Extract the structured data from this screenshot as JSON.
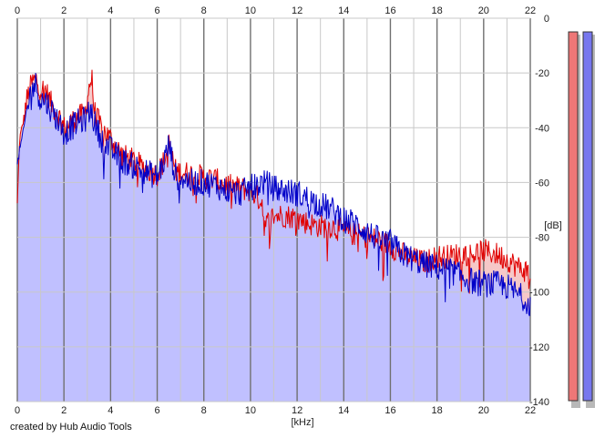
{
  "footer": {
    "credit": "created by Hub Audio Tools"
  },
  "colors": {
    "background": "#ffffff",
    "grid_minor": "#c8c8c8",
    "grid_major": "#707070",
    "red_line": "#e00000",
    "red_fill": "#f6c8c8",
    "blue_line": "#0000c8",
    "blue_fill": "#c0c0ff",
    "meter_red": "#ee7777",
    "meter_blue": "#7777ee",
    "meter_shadow": "#b8b8b8"
  },
  "chart_data": {
    "type": "area",
    "xlabel": "[kHz]",
    "ylabel": "[dB]",
    "xlim": [
      0,
      22
    ],
    "ylim": [
      -140,
      0
    ],
    "x_ticks": [
      "0",
      "2",
      "4",
      "6",
      "8",
      "10",
      "12",
      "14",
      "16",
      "18",
      "20",
      "22"
    ],
    "x_tick_values": [
      0,
      2,
      4,
      6,
      8,
      10,
      12,
      14,
      16,
      18,
      20,
      22
    ],
    "y_ticks": [
      "0",
      "-20",
      "-40",
      "-60",
      "-80",
      "-100",
      "-120",
      "-140"
    ],
    "y_tick_values": [
      0,
      -20,
      -40,
      -60,
      -80,
      -100,
      -120,
      -140
    ],
    "x_top_axis": true,
    "y_axis_side": "right",
    "grid": true,
    "series": [
      {
        "color": "red",
        "x": [
          0,
          0.1,
          0.25,
          0.4,
          0.6,
          0.8,
          1.0,
          1.2,
          1.5,
          1.8,
          2.0,
          2.3,
          2.6,
          2.9,
          3.1,
          3.2,
          3.3,
          3.6,
          4.0,
          4.5,
          5.0,
          5.5,
          6.0,
          6.3,
          6.5,
          6.8,
          7.0,
          7.5,
          8.0,
          8.5,
          9.0,
          9.5,
          10.0,
          10.5,
          10.6,
          11.0,
          11.5,
          12.0,
          12.5,
          13.0,
          13.5,
          14.0,
          14.5,
          15.0,
          15.5,
          16.0,
          16.5,
          17.0,
          17.5,
          18.0,
          18.5,
          19.0,
          19.5,
          20.0,
          20.5,
          21.0,
          21.5,
          22.0
        ],
        "y": [
          -68,
          -44,
          -38,
          -30,
          -24,
          -22,
          -26,
          -26,
          -32,
          -36,
          -40,
          -38,
          -36,
          -35,
          -24,
          -22,
          -34,
          -40,
          -44,
          -50,
          -52,
          -55,
          -57,
          -52,
          -46,
          -56,
          -56,
          -57,
          -58,
          -59,
          -61,
          -62,
          -63,
          -67,
          -76,
          -72,
          -72,
          -73,
          -75,
          -76,
          -76,
          -78,
          -79,
          -80,
          -81,
          -83,
          -86,
          -88,
          -89,
          -87,
          -87,
          -86,
          -86,
          -85,
          -86,
          -88,
          -91,
          -93
        ]
      },
      {
        "color": "blue",
        "x": [
          0,
          0.1,
          0.25,
          0.4,
          0.6,
          0.8,
          1.0,
          1.2,
          1.5,
          1.8,
          2.0,
          2.3,
          2.6,
          2.9,
          3.1,
          3.2,
          3.3,
          3.6,
          4.0,
          4.5,
          5.0,
          5.5,
          6.0,
          6.3,
          6.5,
          6.8,
          7.0,
          7.5,
          8.0,
          8.5,
          9.0,
          9.5,
          10.0,
          10.5,
          10.6,
          11.0,
          11.5,
          12.0,
          12.5,
          13.0,
          13.5,
          14.0,
          14.5,
          15.0,
          15.5,
          16.0,
          16.5,
          17.0,
          17.5,
          18.0,
          18.5,
          19.0,
          19.5,
          20.0,
          20.5,
          21.0,
          21.5,
          22.0
        ],
        "y": [
          -54,
          -48,
          -42,
          -34,
          -26,
          -24,
          -30,
          -30,
          -34,
          -38,
          -42,
          -40,
          -38,
          -37,
          -34,
          -34,
          -38,
          -44,
          -48,
          -52,
          -54,
          -56,
          -58,
          -52,
          -46,
          -58,
          -58,
          -60,
          -60,
          -61,
          -63,
          -64,
          -62,
          -60,
          -60,
          -62,
          -63,
          -64,
          -66,
          -68,
          -70,
          -73,
          -75,
          -78,
          -81,
          -82,
          -86,
          -88,
          -90,
          -91,
          -92,
          -94,
          -96,
          -97,
          -97,
          -98,
          -101,
          -104
        ]
      }
    ],
    "level_meters": [
      {
        "color": "red",
        "level_db": -3
      },
      {
        "color": "blue",
        "level_db": -3
      }
    ]
  }
}
